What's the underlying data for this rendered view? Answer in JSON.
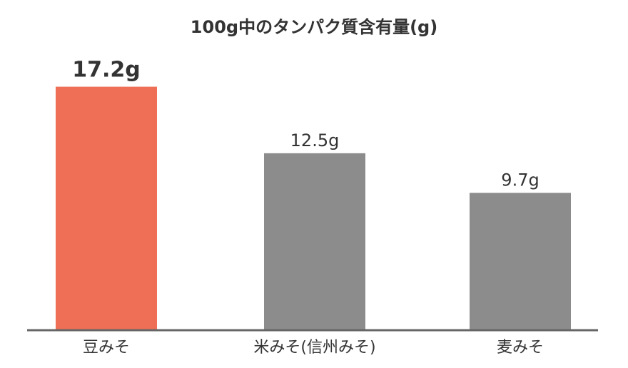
{
  "chart_data": {
    "type": "bar",
    "title": "100g中のタンパク質含有量(g)",
    "xlabel": "",
    "ylabel": "",
    "ylim": [
      0,
      20
    ],
    "categories": [
      "豆みそ",
      "米みそ(信州みそ)",
      "麦みそ"
    ],
    "values": [
      17.2,
      12.5,
      9.7
    ],
    "data_labels": [
      "17.2g",
      "12.5g",
      "9.7g"
    ],
    "highlight_index": 0,
    "colors": {
      "highlight": "#EE6F55",
      "default": "#8C8C8C",
      "axis": "#666666",
      "text": "#333333"
    },
    "grid": false,
    "legend": "none"
  }
}
